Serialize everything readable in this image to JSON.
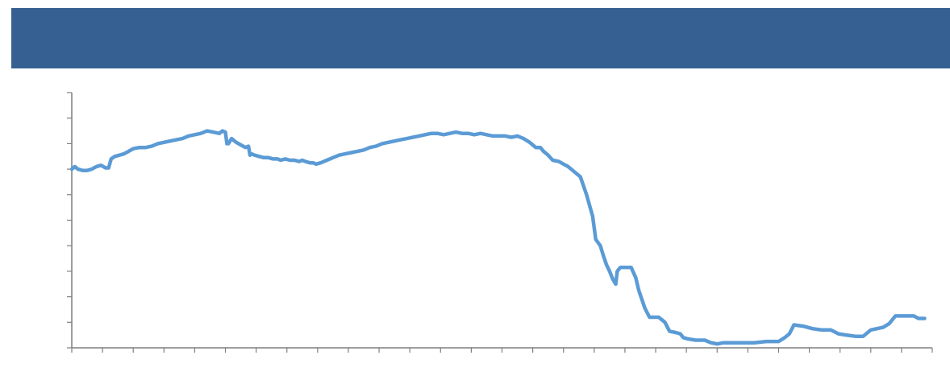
{
  "banner": {
    "title": "",
    "color": "#376092"
  },
  "chart_data": {
    "type": "line",
    "title": "",
    "xlabel": "",
    "ylabel": "",
    "xlim": [
      0,
      28
    ],
    "ylim": [
      0,
      10
    ],
    "grid": false,
    "axis_color": "#7f7f7f",
    "series": [
      {
        "color": "#5b9bd5",
        "points": [
          [
            0.0,
            7.0
          ],
          [
            0.1,
            7.1
          ],
          [
            0.2,
            7.0
          ],
          [
            0.35,
            6.95
          ],
          [
            0.5,
            6.95
          ],
          [
            0.65,
            7.0
          ],
          [
            0.8,
            7.1
          ],
          [
            0.95,
            7.15
          ],
          [
            1.1,
            7.05
          ],
          [
            1.2,
            7.05
          ],
          [
            1.28,
            7.4
          ],
          [
            1.4,
            7.5
          ],
          [
            1.55,
            7.55
          ],
          [
            1.7,
            7.6
          ],
          [
            1.85,
            7.7
          ],
          [
            2.0,
            7.8
          ],
          [
            2.2,
            7.85
          ],
          [
            2.4,
            7.85
          ],
          [
            2.6,
            7.9
          ],
          [
            2.8,
            8.0
          ],
          [
            3.0,
            8.05
          ],
          [
            3.2,
            8.1
          ],
          [
            3.4,
            8.15
          ],
          [
            3.6,
            8.2
          ],
          [
            3.8,
            8.3
          ],
          [
            4.0,
            8.35
          ],
          [
            4.2,
            8.4
          ],
          [
            4.4,
            8.5
          ],
          [
            4.6,
            8.45
          ],
          [
            4.8,
            8.4
          ],
          [
            4.9,
            8.5
          ],
          [
            5.0,
            8.45
          ],
          [
            5.05,
            8.0
          ],
          [
            5.1,
            8.0
          ],
          [
            5.2,
            8.2
          ],
          [
            5.35,
            8.05
          ],
          [
            5.5,
            7.95
          ],
          [
            5.65,
            7.85
          ],
          [
            5.75,
            7.9
          ],
          [
            5.8,
            7.55
          ],
          [
            5.85,
            7.6
          ],
          [
            5.95,
            7.55
          ],
          [
            6.1,
            7.5
          ],
          [
            6.25,
            7.45
          ],
          [
            6.4,
            7.45
          ],
          [
            6.55,
            7.4
          ],
          [
            6.7,
            7.4
          ],
          [
            6.8,
            7.35
          ],
          [
            6.95,
            7.4
          ],
          [
            7.1,
            7.35
          ],
          [
            7.25,
            7.35
          ],
          [
            7.4,
            7.3
          ],
          [
            7.5,
            7.35
          ],
          [
            7.6,
            7.3
          ],
          [
            7.75,
            7.25
          ],
          [
            7.85,
            7.25
          ],
          [
            7.95,
            7.2
          ],
          [
            8.1,
            7.25
          ],
          [
            8.3,
            7.35
          ],
          [
            8.5,
            7.45
          ],
          [
            8.7,
            7.55
          ],
          [
            8.9,
            7.6
          ],
          [
            9.1,
            7.65
          ],
          [
            9.3,
            7.7
          ],
          [
            9.5,
            7.75
          ],
          [
            9.7,
            7.85
          ],
          [
            9.9,
            7.9
          ],
          [
            10.1,
            8.0
          ],
          [
            10.3,
            8.05
          ],
          [
            10.5,
            8.1
          ],
          [
            10.7,
            8.15
          ],
          [
            10.9,
            8.2
          ],
          [
            11.1,
            8.25
          ],
          [
            11.3,
            8.3
          ],
          [
            11.5,
            8.35
          ],
          [
            11.7,
            8.4
          ],
          [
            11.9,
            8.4
          ],
          [
            12.1,
            8.35
          ],
          [
            12.3,
            8.4
          ],
          [
            12.5,
            8.45
          ],
          [
            12.7,
            8.4
          ],
          [
            12.9,
            8.4
          ],
          [
            13.1,
            8.35
          ],
          [
            13.3,
            8.4
          ],
          [
            13.5,
            8.35
          ],
          [
            13.7,
            8.3
          ],
          [
            13.9,
            8.3
          ],
          [
            14.1,
            8.3
          ],
          [
            14.3,
            8.25
          ],
          [
            14.5,
            8.3
          ],
          [
            14.7,
            8.2
          ],
          [
            14.9,
            8.05
          ],
          [
            15.0,
            7.95
          ],
          [
            15.1,
            7.85
          ],
          [
            15.25,
            7.85
          ],
          [
            15.35,
            7.7
          ],
          [
            15.5,
            7.55
          ],
          [
            15.65,
            7.35
          ],
          [
            15.85,
            7.3
          ],
          [
            16.0,
            7.2
          ],
          [
            16.15,
            7.1
          ],
          [
            16.35,
            6.9
          ],
          [
            16.55,
            6.7
          ],
          [
            16.75,
            6.0
          ],
          [
            16.95,
            5.15
          ],
          [
            17.05,
            4.25
          ],
          [
            17.2,
            4.0
          ],
          [
            17.3,
            3.6
          ],
          [
            17.4,
            3.25
          ],
          [
            17.5,
            3.0
          ],
          [
            17.6,
            2.7
          ],
          [
            17.7,
            2.5
          ],
          [
            17.75,
            3.0
          ],
          [
            17.85,
            3.15
          ],
          [
            18.05,
            3.15
          ],
          [
            18.2,
            3.15
          ],
          [
            18.35,
            2.75
          ],
          [
            18.45,
            2.25
          ],
          [
            18.55,
            1.9
          ],
          [
            18.65,
            1.55
          ],
          [
            18.8,
            1.2
          ],
          [
            18.95,
            1.2
          ],
          [
            19.1,
            1.2
          ],
          [
            19.3,
            1.0
          ],
          [
            19.45,
            0.65
          ],
          [
            19.65,
            0.6
          ],
          [
            19.8,
            0.55
          ],
          [
            19.9,
            0.4
          ],
          [
            20.05,
            0.35
          ],
          [
            20.3,
            0.3
          ],
          [
            20.6,
            0.3
          ],
          [
            20.8,
            0.2
          ],
          [
            21.0,
            0.15
          ],
          [
            21.2,
            0.2
          ],
          [
            21.4,
            0.2
          ],
          [
            21.8,
            0.2
          ],
          [
            22.2,
            0.2
          ],
          [
            22.6,
            0.25
          ],
          [
            23.0,
            0.25
          ],
          [
            23.2,
            0.4
          ],
          [
            23.35,
            0.55
          ],
          [
            23.5,
            0.9
          ],
          [
            23.8,
            0.85
          ],
          [
            24.1,
            0.75
          ],
          [
            24.4,
            0.7
          ],
          [
            24.7,
            0.7
          ],
          [
            24.95,
            0.55
          ],
          [
            25.2,
            0.5
          ],
          [
            25.5,
            0.45
          ],
          [
            25.75,
            0.45
          ],
          [
            26.0,
            0.7
          ],
          [
            26.2,
            0.75
          ],
          [
            26.4,
            0.8
          ],
          [
            26.6,
            0.95
          ],
          [
            26.8,
            1.25
          ],
          [
            27.1,
            1.25
          ],
          [
            27.4,
            1.25
          ],
          [
            27.55,
            1.15
          ],
          [
            27.75,
            1.15
          ]
        ]
      }
    ]
  }
}
